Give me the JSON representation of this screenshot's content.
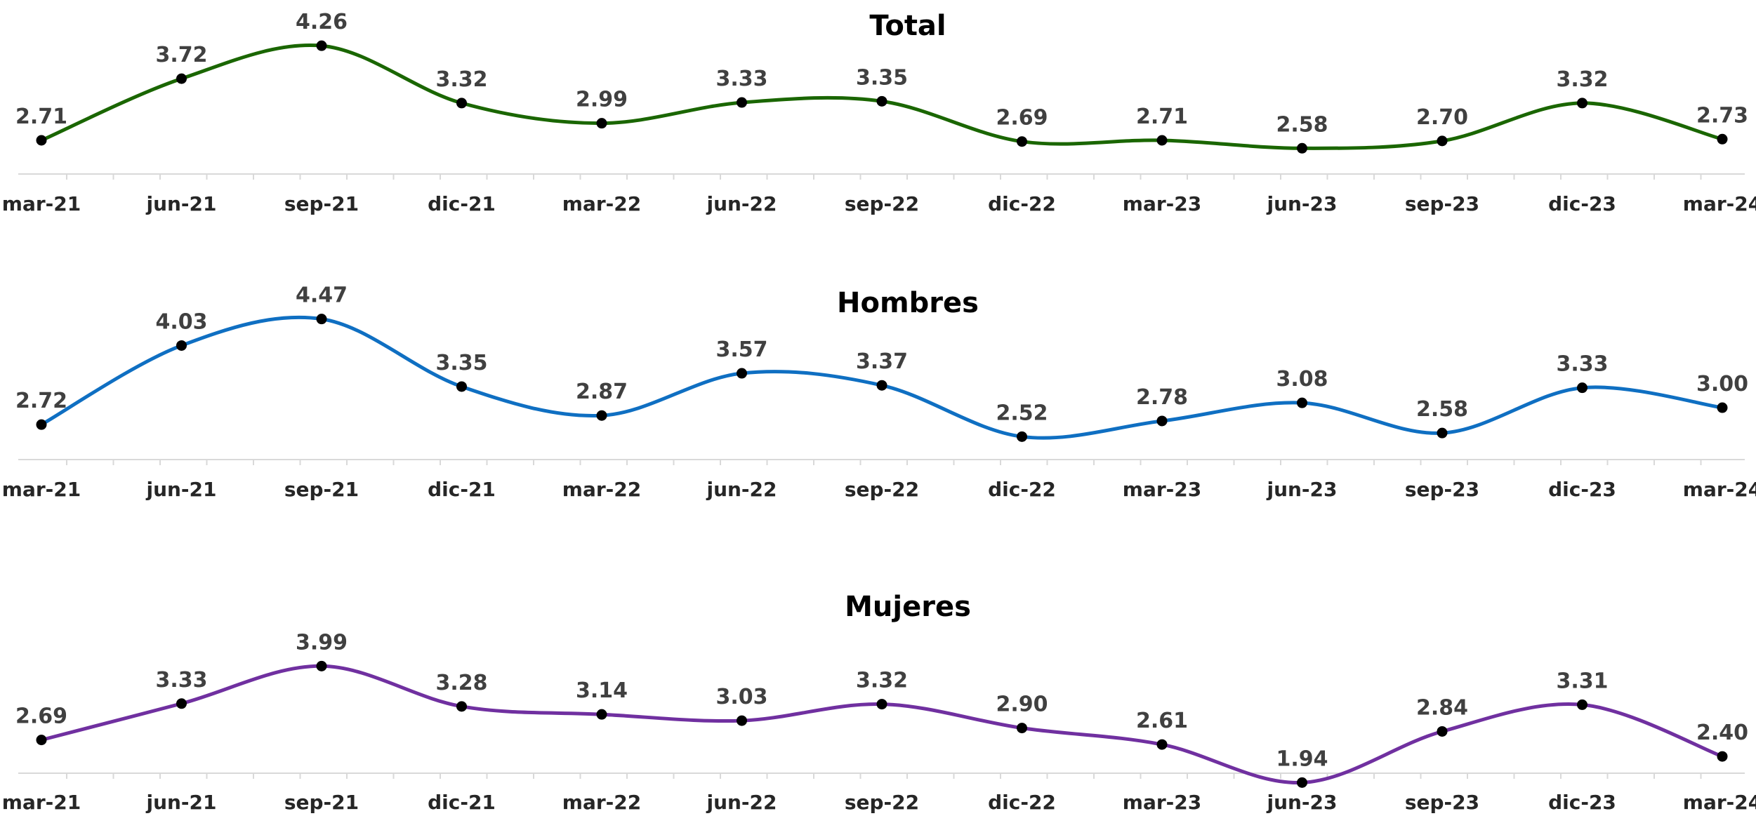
{
  "chart_data": [
    {
      "type": "line",
      "title": "Total",
      "categories": [
        "mar-21",
        "jun-21",
        "sep-21",
        "dic-21",
        "mar-22",
        "jun-22",
        "sep-22",
        "dic-22",
        "mar-23",
        "jun-23",
        "sep-23",
        "dic-23",
        "mar-24"
      ],
      "series": [
        {
          "values": [
            2.71,
            3.72,
            4.26,
            3.32,
            2.99,
            3.33,
            3.35,
            2.69,
            2.71,
            2.58,
            2.7,
            3.32,
            2.73
          ],
          "color": "#1a6600"
        }
      ],
      "data_labels": [
        "2.71",
        "3.72",
        "4.26",
        "3.32",
        "2.99",
        "3.33",
        "3.35",
        "2.69",
        "2.71",
        "2.58",
        "2.70",
        "3.32",
        "2.73"
      ],
      "smooth": true,
      "markers": true,
      "grid": false,
      "legend": "none"
    },
    {
      "type": "line",
      "title": "Hombres",
      "categories": [
        "mar-21",
        "jun-21",
        "sep-21",
        "dic-21",
        "mar-22",
        "jun-22",
        "sep-22",
        "dic-22",
        "mar-23",
        "jun-23",
        "sep-23",
        "dic-23",
        "mar-24"
      ],
      "series": [
        {
          "values": [
            2.72,
            4.03,
            4.47,
            3.35,
            2.87,
            3.57,
            3.37,
            2.52,
            2.78,
            3.08,
            2.58,
            3.33,
            3.0
          ],
          "color": "#0f6fc2"
        }
      ],
      "data_labels": [
        "2.72",
        "4.03",
        "4.47",
        "3.35",
        "2.87",
        "3.57",
        "3.37",
        "2.52",
        "2.78",
        "3.08",
        "2.58",
        "3.33",
        "3.00"
      ],
      "smooth": true,
      "markers": true,
      "grid": false,
      "legend": "none"
    },
    {
      "type": "line",
      "title": "Mujeres",
      "categories": [
        "mar-21",
        "jun-21",
        "sep-21",
        "dic-21",
        "mar-22",
        "jun-22",
        "sep-22",
        "dic-22",
        "mar-23",
        "jun-23",
        "sep-23",
        "dic-23",
        "mar-24"
      ],
      "series": [
        {
          "values": [
            2.69,
            3.33,
            3.99,
            3.28,
            3.14,
            3.03,
            3.32,
            2.9,
            2.61,
            1.94,
            2.84,
            3.31,
            2.4
          ],
          "color": "#7030a0"
        }
      ],
      "data_labels": [
        "2.69",
        "3.33",
        "3.99",
        "3.28",
        "3.14",
        "3.03",
        "3.32",
        "2.90",
        "2.61",
        "1.94",
        "2.84",
        "3.31",
        "2.40"
      ],
      "smooth": true,
      "markers": true,
      "grid": false,
      "legend": "none"
    }
  ]
}
